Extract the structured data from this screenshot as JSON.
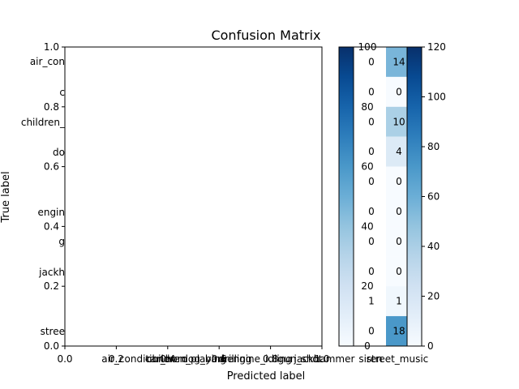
{
  "chart_data": {
    "type": "heatmap",
    "title": "Confusion Matrix",
    "xlabel": "Predicted label",
    "ylabel": "True label",
    "colormap": "Blues",
    "blank_axes": {
      "x_ticks": [
        "0.0",
        "0.2",
        "0.4",
        "0.6",
        "0.8",
        "1.0"
      ],
      "y_ticks": [
        "0.0",
        "0.2",
        "0.4",
        "0.6",
        "0.8",
        "1.0"
      ]
    },
    "row_labels_visible": [
      "air_con",
      "c",
      "children_",
      "do",
      "engin",
      "g",
      "jackh",
      "stree"
    ],
    "column_labels_visible": [
      "air_conditioner",
      "car_horn",
      "children_playing",
      "dog_bark",
      "drilling",
      "engine_idling",
      "gun_shot",
      "jackhammer",
      "siren",
      "street_music"
    ],
    "matrix_visible_columns": {
      "columns": [
        "siren",
        "street_music"
      ],
      "values": [
        [
          0,
          14
        ],
        [
          0,
          0
        ],
        [
          0,
          10
        ],
        [
          0,
          4
        ],
        [
          0,
          0
        ],
        [
          0,
          0
        ],
        [
          0,
          0
        ],
        [
          0,
          0
        ],
        [
          1,
          1
        ],
        [
          0,
          18
        ]
      ]
    },
    "colorbar_1": {
      "ticks": [
        "0",
        "20",
        "40",
        "60",
        "80",
        "100"
      ],
      "max": 100
    },
    "colorbar_2": {
      "ticks": [
        "0",
        "20",
        "40",
        "60",
        "80",
        "100",
        "120"
      ],
      "max": 120
    },
    "grid": false
  }
}
